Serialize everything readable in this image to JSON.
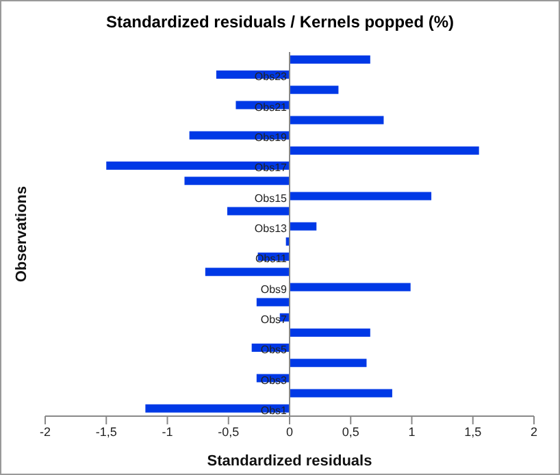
{
  "chart_data": {
    "type": "bar",
    "orientation": "horizontal",
    "title": "Standardized residuals / Kernels popped (%)",
    "xlabel": "Standardized residuals",
    "ylabel": "Observations",
    "categories": [
      null,
      "Obs23",
      null,
      "Obs21",
      null,
      "Obs19",
      null,
      "Obs17",
      null,
      "Obs15",
      null,
      "Obs13",
      null,
      "Obs11",
      null,
      "Obs9",
      null,
      "Obs7",
      null,
      "Obs5",
      null,
      "Obs3",
      null,
      "Obs1"
    ],
    "values": [
      0.66,
      -0.6,
      0.4,
      -0.44,
      0.77,
      -0.82,
      1.55,
      -1.5,
      -0.86,
      1.16,
      -0.51,
      0.22,
      -0.03,
      -0.26,
      -0.69,
      0.99,
      -0.27,
      -0.08,
      0.66,
      -0.31,
      0.63,
      -0.27,
      0.84,
      -1.18
    ],
    "color": "#0039e6",
    "xlim": [
      -2,
      2
    ],
    "xticks": [
      -2,
      {
        "value": -1.5,
        "label": "-1,5"
      },
      -1,
      {
        "value": -0.5,
        "label": "-0,5"
      },
      0,
      {
        "value": 0.5,
        "label": "0,5"
      },
      1,
      {
        "value": 1.5,
        "label": "1,5"
      },
      2
    ]
  }
}
